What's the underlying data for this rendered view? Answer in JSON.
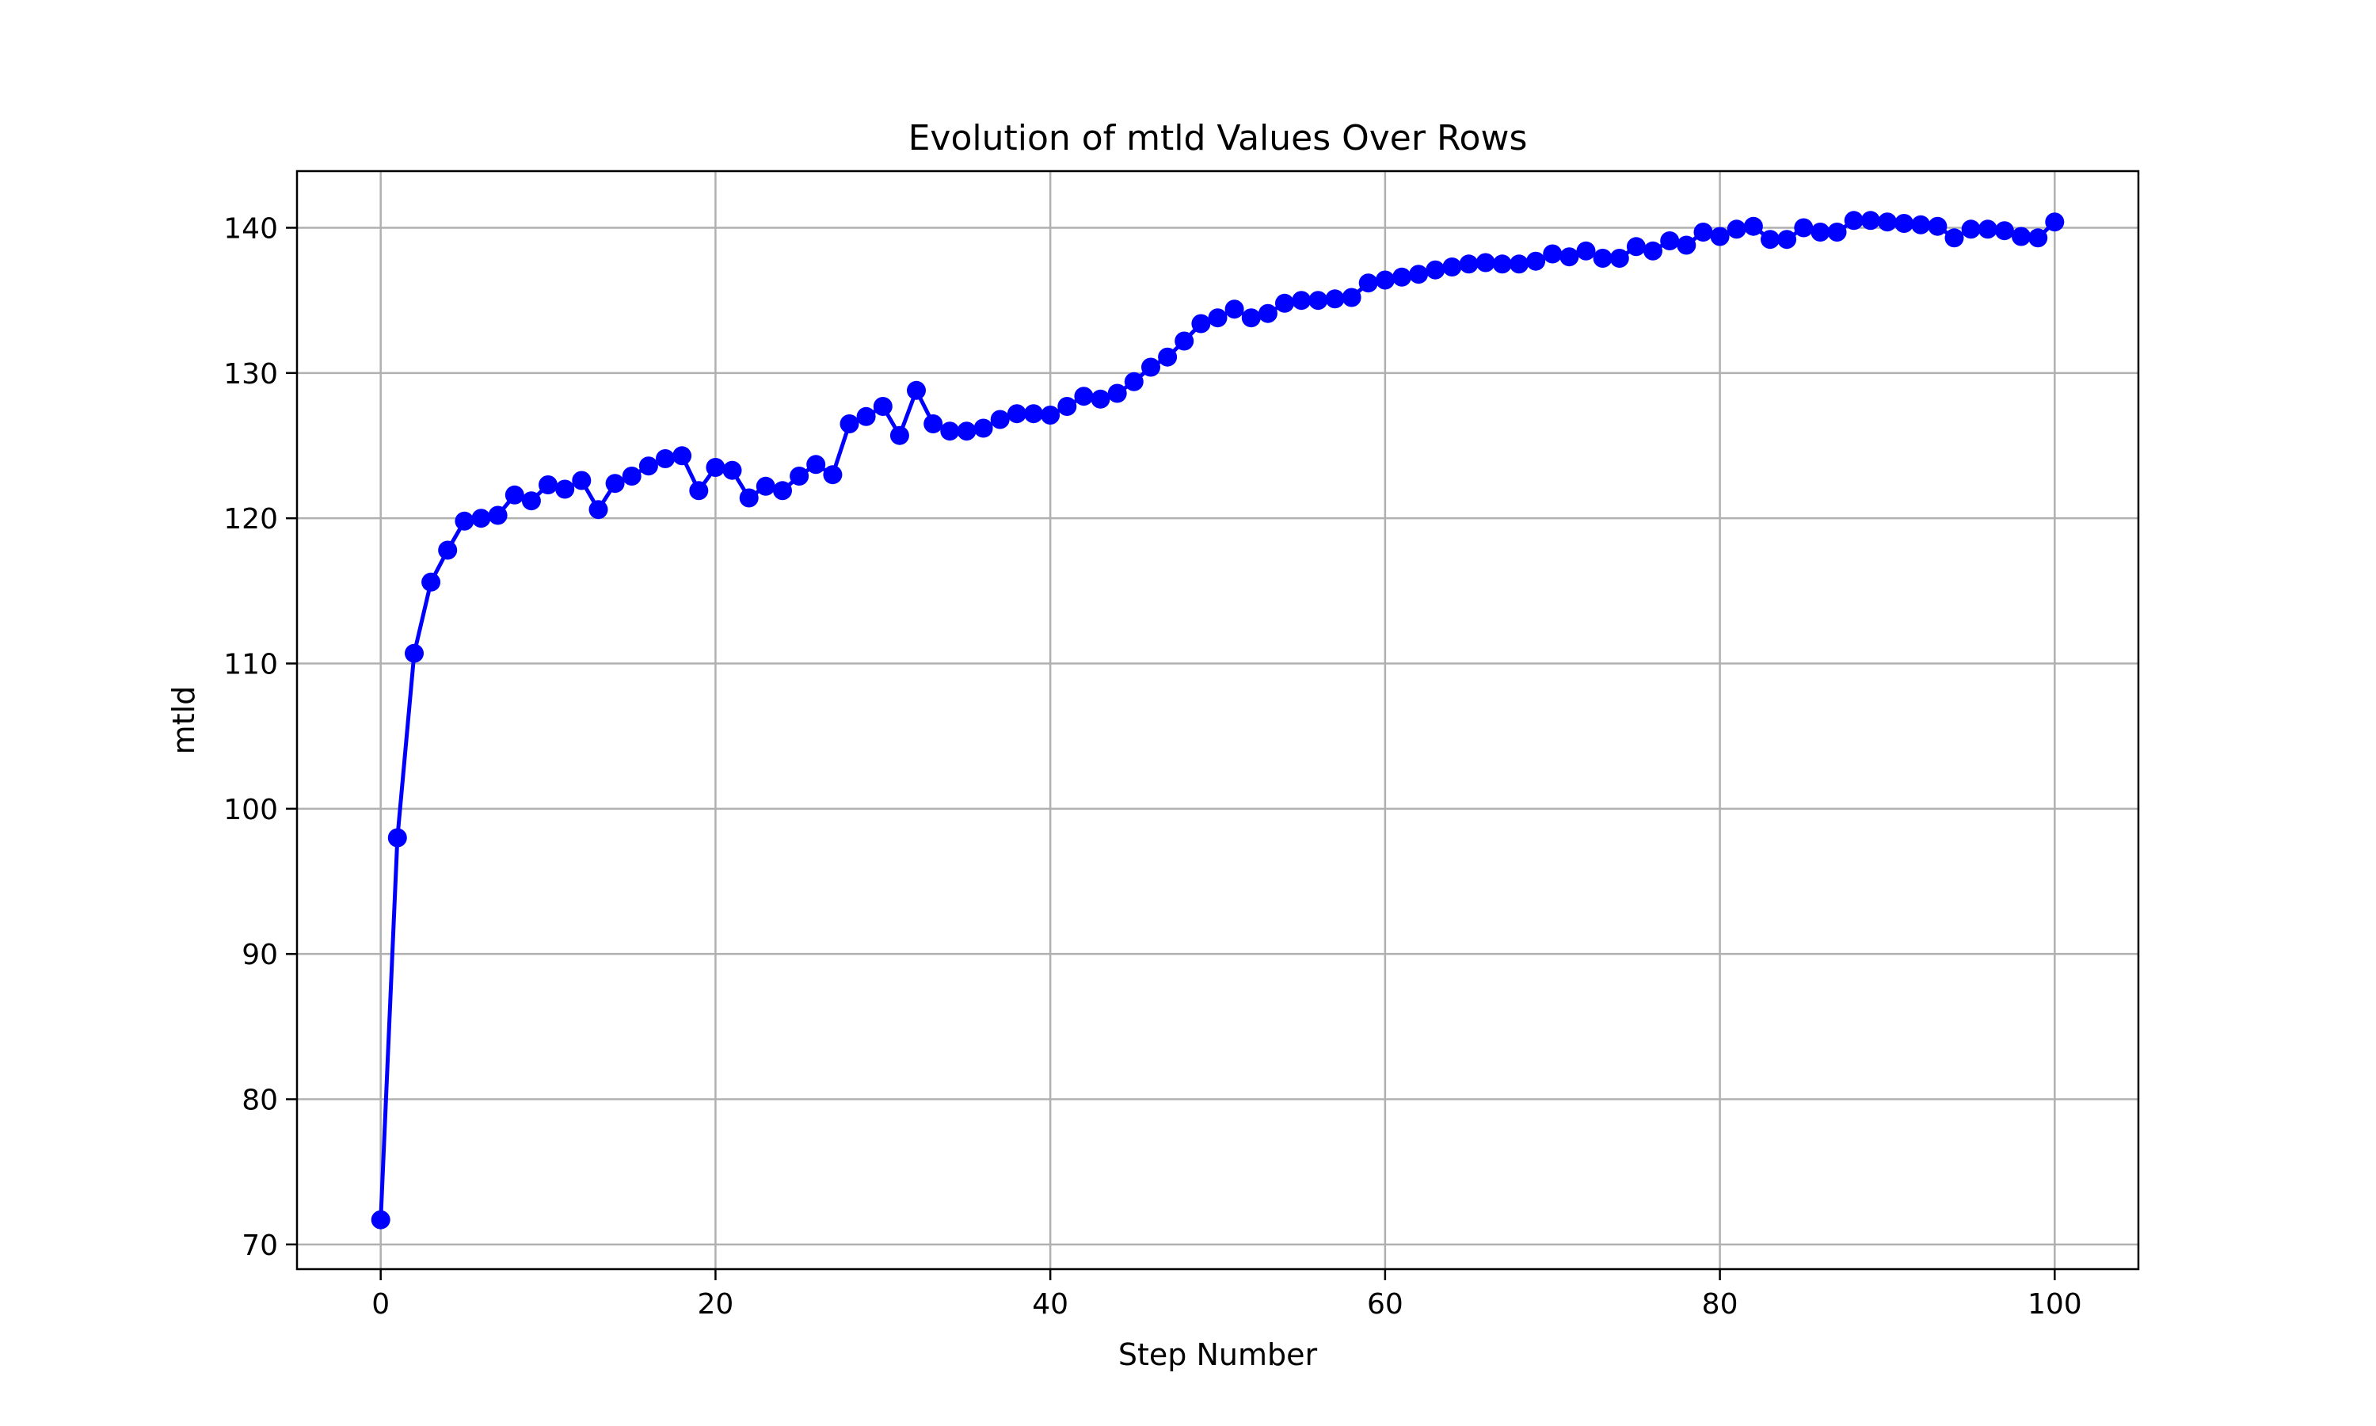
{
  "chart_data": {
    "type": "line",
    "title": "Evolution of mtld Values Over Rows",
    "xlabel": "Step Number",
    "ylabel": "mtld",
    "xlim": [
      -5,
      105
    ],
    "ylim": [
      68.3,
      143.9
    ],
    "xticks": [
      0,
      20,
      40,
      60,
      80,
      100
    ],
    "yticks": [
      70,
      80,
      90,
      100,
      110,
      120,
      130,
      140
    ],
    "grid": true,
    "legend": "none",
    "marker": "circle",
    "colors": {
      "series": "#0000ff",
      "grid": "#b0b0b0",
      "axes": "#000000"
    },
    "series": [
      {
        "x": [
          0,
          1,
          2,
          3,
          4,
          5,
          6,
          7,
          8,
          9,
          10,
          11,
          12,
          13,
          14,
          15,
          16,
          17,
          18,
          19,
          20,
          21,
          22,
          23,
          24,
          25,
          26,
          27,
          28,
          29,
          30,
          31,
          32,
          33,
          34,
          35,
          36,
          37,
          38,
          39,
          40,
          41,
          42,
          43,
          44,
          45,
          46,
          47,
          48,
          49,
          50,
          51,
          52,
          53,
          54,
          55,
          56,
          57,
          58,
          59,
          60,
          61,
          62,
          63,
          64,
          65,
          66,
          67,
          68,
          69,
          70,
          71,
          72,
          73,
          74,
          75,
          76,
          77,
          78,
          79,
          80,
          81,
          82,
          83,
          84,
          85,
          86,
          87,
          88,
          89,
          90,
          91,
          92,
          93,
          94,
          95,
          96,
          97,
          98,
          99,
          100
        ],
        "values": [
          71.7,
          98.0,
          110.7,
          115.6,
          117.8,
          119.8,
          120.0,
          120.2,
          121.6,
          121.2,
          122.3,
          122.0,
          122.6,
          120.6,
          122.4,
          122.9,
          123.6,
          124.1,
          124.3,
          121.9,
          123.5,
          123.3,
          121.4,
          122.2,
          121.9,
          122.9,
          123.7,
          123.0,
          126.5,
          127.0,
          127.7,
          125.7,
          128.8,
          126.5,
          126.0,
          126.0,
          126.2,
          126.8,
          127.2,
          127.2,
          127.1,
          127.7,
          128.4,
          128.2,
          128.6,
          129.4,
          130.4,
          131.1,
          132.2,
          133.4,
          133.8,
          134.4,
          133.8,
          134.1,
          134.8,
          135.0,
          135.0,
          135.1,
          135.2,
          136.2,
          136.4,
          136.6,
          136.8,
          137.1,
          137.3,
          137.5,
          137.6,
          137.5,
          137.5,
          137.7,
          138.2,
          138.0,
          138.4,
          137.9,
          137.9,
          138.7,
          138.4,
          139.1,
          138.8,
          139.7,
          139.4,
          139.9,
          140.1,
          139.2,
          139.2,
          140.0,
          139.7,
          139.7,
          140.5,
          140.5,
          140.4,
          140.3,
          140.2,
          140.1,
          139.3,
          139.9,
          139.9,
          139.8,
          139.4,
          139.3,
          140.4
        ]
      }
    ]
  }
}
